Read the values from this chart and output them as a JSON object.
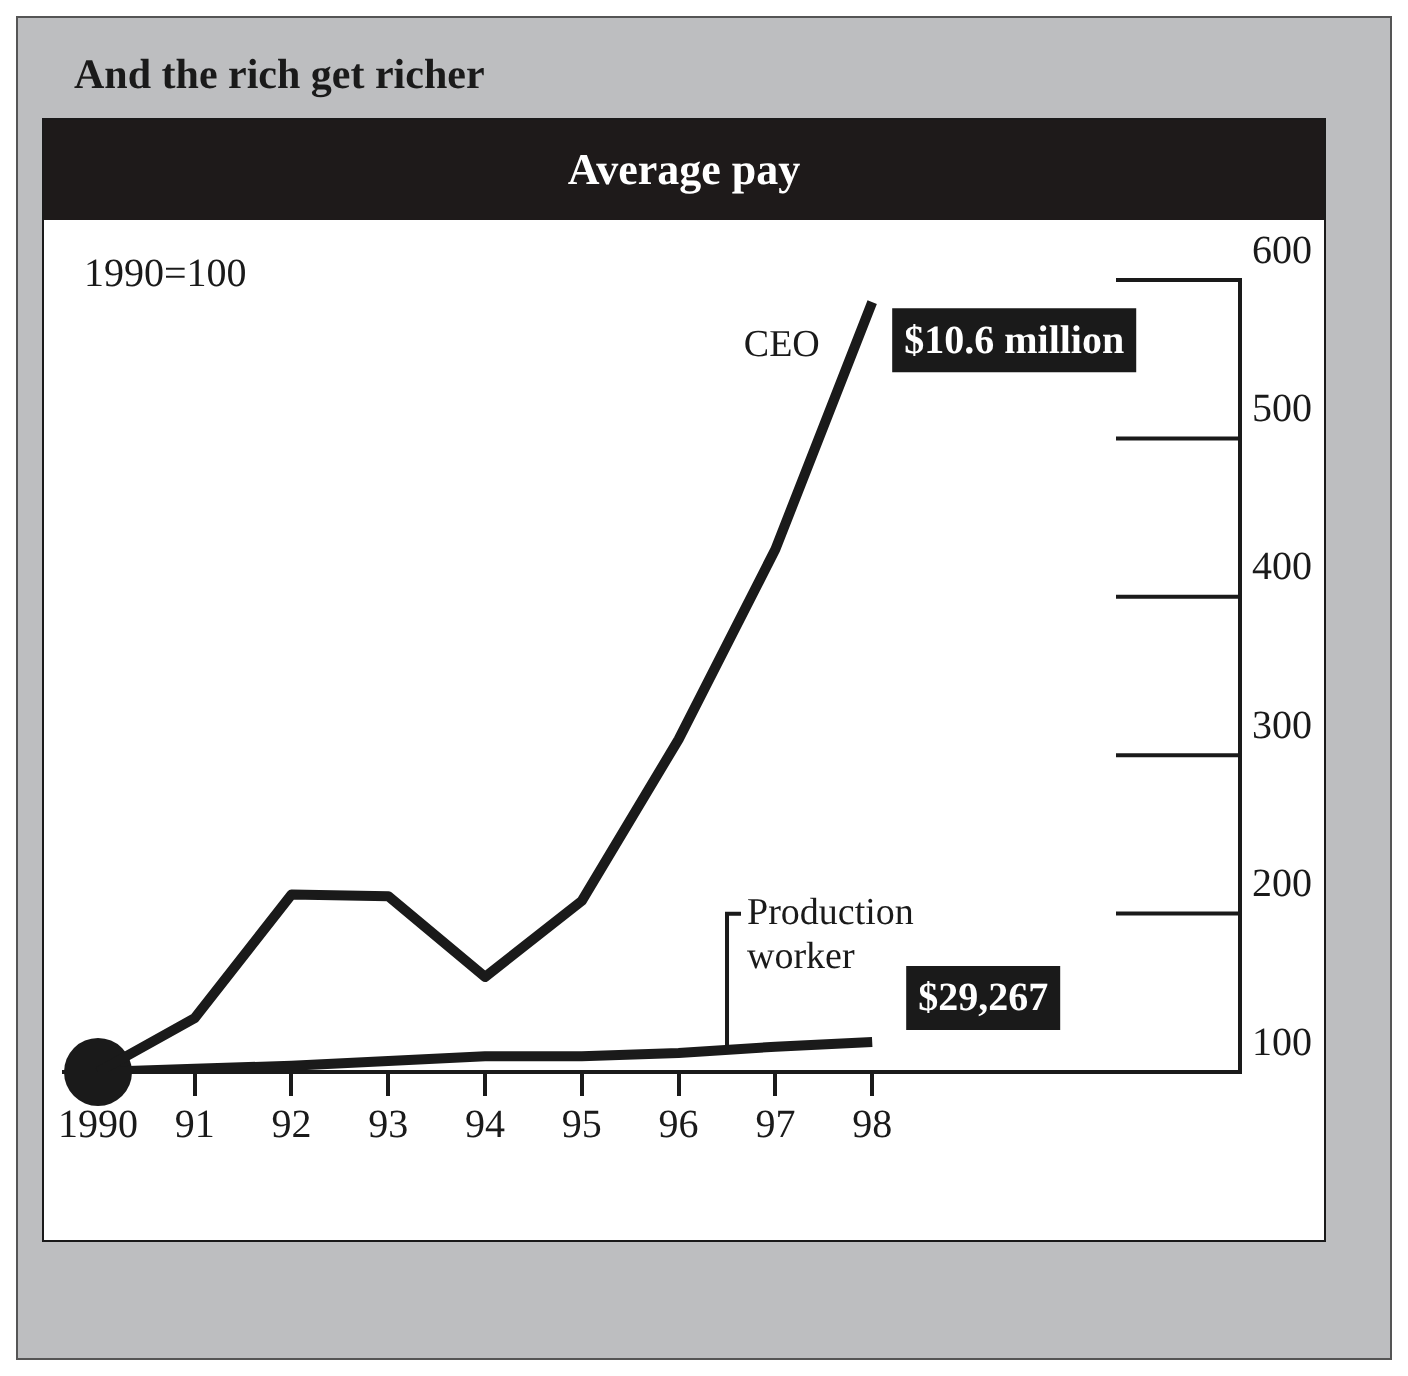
{
  "chart_data": {
    "type": "line",
    "title": "And the rich get richer",
    "subtitle": "Average pay",
    "ylabel": "1990=100",
    "categories": [
      "1990",
      "91",
      "92",
      "93",
      "94",
      "95",
      "96",
      "97",
      "98"
    ],
    "series": [
      {
        "name": "CEO",
        "color": "#1a1a1a",
        "values": [
          100,
          134,
          212,
          211,
          160,
          208,
          310,
          430,
          586
        ]
      },
      {
        "name": "Production worker",
        "color": "#1a1a1a",
        "values": [
          100,
          102,
          104,
          107,
          110,
          110,
          112,
          116,
          119
        ]
      }
    ],
    "annotations": [
      {
        "text": "$10.6 million",
        "x": "98",
        "y": 586
      },
      {
        "text": "$29,267",
        "x": "98",
        "y": 119
      }
    ],
    "ylim": [
      100,
      600
    ],
    "yticks": [
      100,
      200,
      300,
      400,
      500,
      600
    ],
    "grid": false,
    "legend": false
  }
}
